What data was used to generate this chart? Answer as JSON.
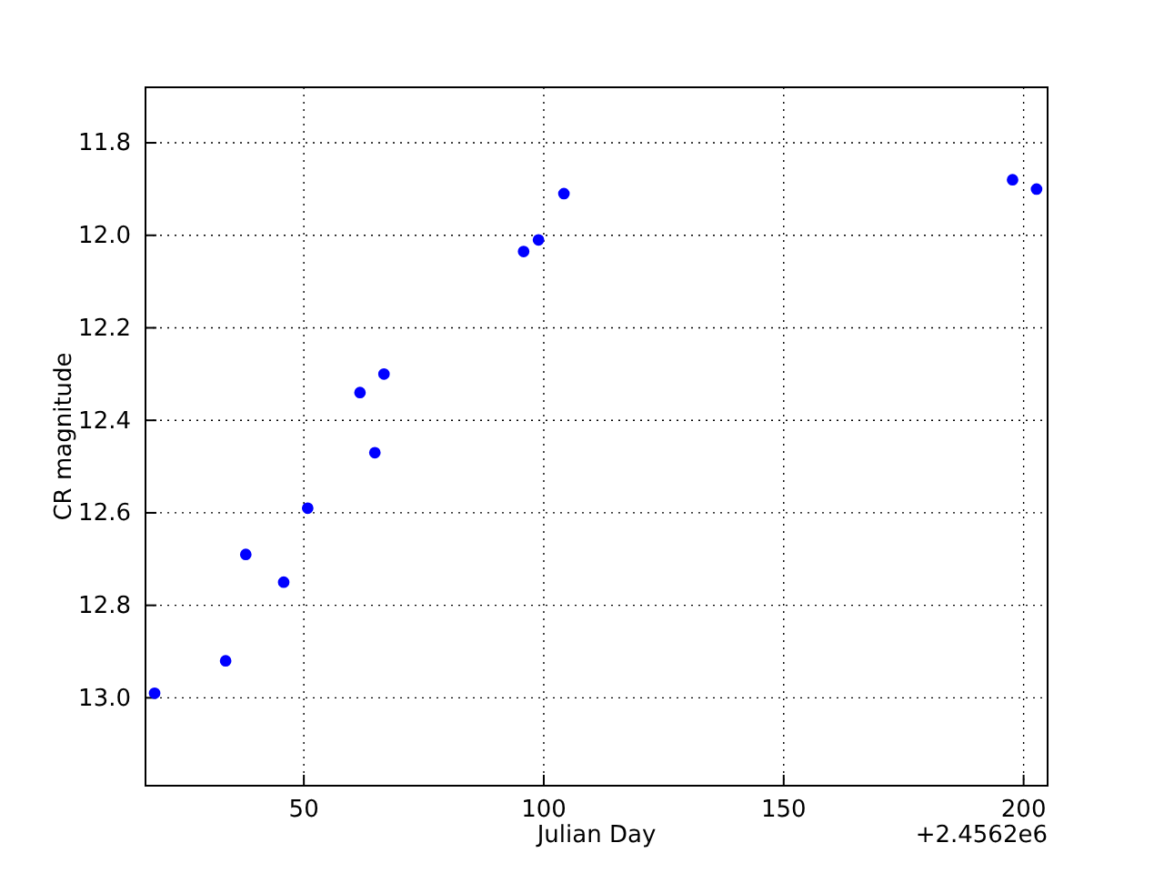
{
  "chart_data": {
    "type": "scatter",
    "xlabel": "Julian Day",
    "ylabel": "CR magnitude",
    "annotations": [
      "+2.4562e6"
    ],
    "x": [
      18.9,
      33.7,
      37.9,
      45.8,
      50.8,
      61.7,
      64.8,
      66.7,
      95.8,
      98.9,
      104.2,
      197.7,
      202.7
    ],
    "series": [
      {
        "color": "#0000ff",
        "values": [
          12.99,
          12.92,
          12.69,
          12.75,
          12.59,
          12.34,
          12.47,
          12.3,
          12.035,
          12.01,
          11.91,
          11.88,
          11.9
        ]
      }
    ],
    "xlim": [
      17,
      205
    ],
    "xticks": [
      50,
      100,
      150,
      200
    ],
    "ylim": [
      13.19,
      11.68
    ],
    "yticks": [
      11.8,
      {
        "value": 12,
        "label": "12.0"
      },
      12.2,
      12.4,
      12.6,
      12.8,
      {
        "value": 13,
        "label": "13.0"
      }
    ],
    "grid": true,
    "marker": "circle"
  }
}
